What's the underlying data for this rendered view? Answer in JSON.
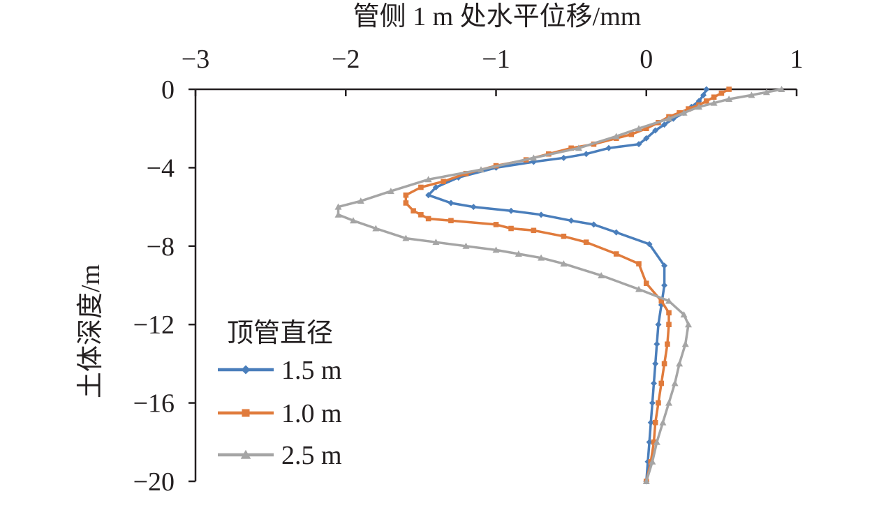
{
  "chart_data": {
    "type": "line",
    "xlabel": "管侧 1 m 处水平位移/mm",
    "ylabel": "土体深度/m",
    "xlim": [
      -3,
      1
    ],
    "ylim": [
      -20,
      0
    ],
    "x_axis_position": "top",
    "x_ticks": [
      -3,
      -2,
      -1,
      0,
      1
    ],
    "x_tick_labels": [
      "−3",
      "−2",
      "−1",
      "0",
      "1"
    ],
    "y_ticks": [
      0,
      -4,
      -8,
      -12,
      -16,
      -20
    ],
    "y_tick_labels": [
      "0",
      "−4",
      "−8",
      "−12",
      "−16",
      "−20"
    ],
    "grid": false,
    "legend": {
      "title": "顶管直径",
      "placement": "bottom-left"
    },
    "series": [
      {
        "name": "1.5 m",
        "color": "#4a7ebb",
        "marker": "diamond",
        "points": [
          [
            0.4,
            0
          ],
          [
            0.38,
            -0.3
          ],
          [
            0.35,
            -0.6
          ],
          [
            0.3,
            -0.9
          ],
          [
            0.25,
            -1.2
          ],
          [
            0.18,
            -1.5
          ],
          [
            0.12,
            -1.8
          ],
          [
            0.06,
            -2.1
          ],
          [
            0.0,
            -2.5
          ],
          [
            -0.05,
            -2.8
          ],
          [
            -0.25,
            -3.0
          ],
          [
            -0.4,
            -3.3
          ],
          [
            -0.55,
            -3.5
          ],
          [
            -0.75,
            -3.7
          ],
          [
            -1.0,
            -4.0
          ],
          [
            -1.25,
            -4.5
          ],
          [
            -1.4,
            -5.0
          ],
          [
            -1.45,
            -5.4
          ],
          [
            -1.3,
            -5.8
          ],
          [
            -1.15,
            -6.0
          ],
          [
            -0.9,
            -6.2
          ],
          [
            -0.7,
            -6.4
          ],
          [
            -0.5,
            -6.7
          ],
          [
            -0.35,
            -6.9
          ],
          [
            -0.2,
            -7.3
          ],
          [
            0.02,
            -7.9
          ],
          [
            0.12,
            -9.0
          ],
          [
            0.12,
            -10.0
          ],
          [
            0.1,
            -11.0
          ],
          [
            0.08,
            -12.0
          ],
          [
            0.07,
            -13.0
          ],
          [
            0.06,
            -14.0
          ],
          [
            0.05,
            -15.0
          ],
          [
            0.04,
            -16.0
          ],
          [
            0.03,
            -17.0
          ],
          [
            0.02,
            -18.0
          ],
          [
            0.01,
            -19.0
          ],
          [
            0.0,
            -20.0
          ]
        ]
      },
      {
        "name": "1.0 m",
        "color": "#e07b3c",
        "marker": "square",
        "points": [
          [
            0.55,
            0
          ],
          [
            0.5,
            -0.2
          ],
          [
            0.45,
            -0.4
          ],
          [
            0.4,
            -0.6
          ],
          [
            0.35,
            -0.8
          ],
          [
            0.28,
            -1.0
          ],
          [
            0.22,
            -1.2
          ],
          [
            0.15,
            -1.4
          ],
          [
            0.08,
            -1.7
          ],
          [
            0.0,
            -2.0
          ],
          [
            -0.1,
            -2.3
          ],
          [
            -0.2,
            -2.5
          ],
          [
            -0.35,
            -2.8
          ],
          [
            -0.5,
            -3.0
          ],
          [
            -0.65,
            -3.3
          ],
          [
            -0.8,
            -3.6
          ],
          [
            -1.0,
            -3.9
          ],
          [
            -1.2,
            -4.3
          ],
          [
            -1.35,
            -4.7
          ],
          [
            -1.5,
            -5.0
          ],
          [
            -1.6,
            -5.4
          ],
          [
            -1.6,
            -5.8
          ],
          [
            -1.55,
            -6.2
          ],
          [
            -1.5,
            -6.4
          ],
          [
            -1.45,
            -6.6
          ],
          [
            -1.3,
            -6.7
          ],
          [
            -1.0,
            -6.9
          ],
          [
            -0.9,
            -7.1
          ],
          [
            -0.75,
            -7.2
          ],
          [
            -0.55,
            -7.5
          ],
          [
            -0.4,
            -7.8
          ],
          [
            -0.2,
            -8.4
          ],
          [
            -0.05,
            -8.9
          ],
          [
            0.0,
            -9.9
          ],
          [
            0.1,
            -10.8
          ],
          [
            0.15,
            -11.4
          ],
          [
            0.15,
            -12.0
          ],
          [
            0.14,
            -13.0
          ],
          [
            0.12,
            -14.0
          ],
          [
            0.1,
            -15.0
          ],
          [
            0.08,
            -16.0
          ],
          [
            0.06,
            -17.0
          ],
          [
            0.05,
            -18.0
          ],
          [
            0.03,
            -19.0
          ],
          [
            0.0,
            -20.0
          ]
        ]
      },
      {
        "name": "2.5 m",
        "color": "#a5a5a5",
        "marker": "triangle",
        "points": [
          [
            0.9,
            0
          ],
          [
            0.8,
            -0.15
          ],
          [
            0.7,
            -0.3
          ],
          [
            0.55,
            -0.5
          ],
          [
            0.45,
            -0.7
          ],
          [
            0.35,
            -0.9
          ],
          [
            0.25,
            -1.2
          ],
          [
            0.15,
            -1.5
          ],
          [
            -0.05,
            -2.0
          ],
          [
            -0.2,
            -2.4
          ],
          [
            -0.45,
            -3.0
          ],
          [
            -0.75,
            -3.5
          ],
          [
            -1.1,
            -4.1
          ],
          [
            -1.45,
            -4.6
          ],
          [
            -1.7,
            -5.2
          ],
          [
            -1.9,
            -5.7
          ],
          [
            -2.05,
            -6.0
          ],
          [
            -2.05,
            -6.4
          ],
          [
            -1.95,
            -6.7
          ],
          [
            -1.8,
            -7.1
          ],
          [
            -1.6,
            -7.6
          ],
          [
            -1.4,
            -7.8
          ],
          [
            -1.2,
            -8.0
          ],
          [
            -1.0,
            -8.2
          ],
          [
            -0.85,
            -8.4
          ],
          [
            -0.7,
            -8.6
          ],
          [
            -0.55,
            -8.9
          ],
          [
            -0.3,
            -9.5
          ],
          [
            -0.05,
            -10.2
          ],
          [
            0.15,
            -10.8
          ],
          [
            0.25,
            -11.5
          ],
          [
            0.28,
            -12.0
          ],
          [
            0.26,
            -13.0
          ],
          [
            0.22,
            -14.0
          ],
          [
            0.19,
            -15.0
          ],
          [
            0.15,
            -16.0
          ],
          [
            0.11,
            -17.0
          ],
          [
            0.07,
            -18.0
          ],
          [
            0.04,
            -19.0
          ],
          [
            0.0,
            -20.0
          ]
        ]
      }
    ]
  }
}
